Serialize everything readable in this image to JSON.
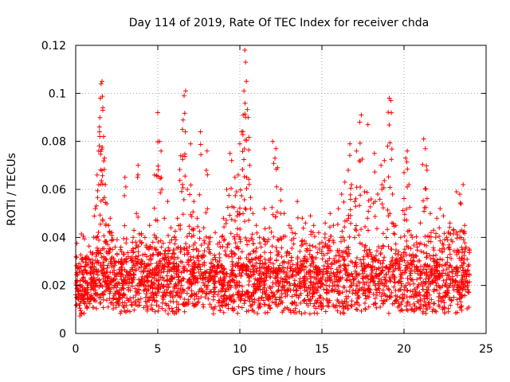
{
  "chart_data": {
    "type": "scatter",
    "title": "Day 114 of 2019, Rate Of TEC Index for receiver chda",
    "xlabel": "GPS time / hours",
    "ylabel": "ROTI / TECUs",
    "xlim": [
      0,
      25
    ],
    "ylim": [
      0,
      0.12
    ],
    "x_ticks": [
      "0",
      "5",
      "10",
      "15",
      "20",
      "25"
    ],
    "y_ticks": [
      "0",
      "0.02",
      "0.04",
      "0.06",
      "0.08",
      "0.1",
      "0.12"
    ],
    "x_tick_values": [
      0,
      5,
      10,
      15,
      20,
      25
    ],
    "y_tick_values": [
      0,
      0.02,
      0.04,
      0.06,
      0.08,
      0.1,
      0.12
    ],
    "grid": true,
    "marker": "+",
    "color": "#ff0000",
    "series": [
      {
        "name": "ROTI",
        "points": [
          [
            0.1,
            0.022
          ],
          [
            0.2,
            0.029
          ],
          [
            0.3,
            0.016
          ],
          [
            0.5,
            0.018
          ],
          [
            0.7,
            0.021
          ],
          [
            0.9,
            0.025
          ],
          [
            1.0,
            0.033
          ],
          [
            1.1,
            0.04
          ],
          [
            1.2,
            0.052
          ],
          [
            1.3,
            0.066
          ],
          [
            1.4,
            0.076
          ],
          [
            1.45,
            0.084
          ],
          [
            1.5,
            0.098
          ],
          [
            1.55,
            0.104
          ],
          [
            1.6,
            0.105
          ],
          [
            1.65,
            0.094
          ],
          [
            1.7,
            0.082
          ],
          [
            1.75,
            0.073
          ],
          [
            1.8,
            0.062
          ],
          [
            1.9,
            0.054
          ],
          [
            2.0,
            0.045
          ],
          [
            2.1,
            0.048
          ],
          [
            2.2,
            0.042
          ],
          [
            2.4,
            0.036
          ],
          [
            2.6,
            0.03
          ],
          [
            2.8,
            0.034
          ],
          [
            3.0,
            0.065
          ],
          [
            3.2,
            0.032
          ],
          [
            3.5,
            0.04
          ],
          [
            3.7,
            0.05
          ],
          [
            3.8,
            0.07
          ],
          [
            4.0,
            0.041
          ],
          [
            4.3,
            0.036
          ],
          [
            4.5,
            0.045
          ],
          [
            4.7,
            0.038
          ],
          [
            4.8,
            0.066
          ],
          [
            5.0,
            0.092
          ],
          [
            5.1,
            0.08
          ],
          [
            5.2,
            0.076
          ],
          [
            5.4,
            0.048
          ],
          [
            5.6,
            0.055
          ],
          [
            5.8,
            0.044
          ],
          [
            6.0,
            0.04
          ],
          [
            6.2,
            0.048
          ],
          [
            6.4,
            0.074
          ],
          [
            6.5,
            0.085
          ],
          [
            6.6,
            0.099
          ],
          [
            6.7,
            0.101
          ],
          [
            6.8,
            0.06
          ],
          [
            7.0,
            0.079
          ],
          [
            7.2,
            0.055
          ],
          [
            7.4,
            0.048
          ],
          [
            7.6,
            0.084
          ],
          [
            7.8,
            0.044
          ],
          [
            8.0,
            0.076
          ],
          [
            8.2,
            0.04
          ],
          [
            8.5,
            0.042
          ],
          [
            8.8,
            0.036
          ],
          [
            9.0,
            0.048
          ],
          [
            9.2,
            0.06
          ],
          [
            9.4,
            0.075
          ],
          [
            9.5,
            0.072
          ],
          [
            9.7,
            0.065
          ],
          [
            9.8,
            0.059
          ],
          [
            9.9,
            0.066
          ],
          [
            10.0,
            0.079
          ],
          [
            10.1,
            0.084
          ],
          [
            10.2,
            0.091
          ],
          [
            10.25,
            0.101
          ],
          [
            10.3,
            0.118
          ],
          [
            10.35,
            0.113
          ],
          [
            10.4,
            0.105
          ],
          [
            10.5,
            0.09
          ],
          [
            10.6,
            0.07
          ],
          [
            10.8,
            0.05
          ],
          [
            11.0,
            0.045
          ],
          [
            11.2,
            0.04
          ],
          [
            11.5,
            0.052
          ],
          [
            11.8,
            0.044
          ],
          [
            12.0,
            0.08
          ],
          [
            12.2,
            0.077
          ],
          [
            12.3,
            0.069
          ],
          [
            12.5,
            0.06
          ],
          [
            12.7,
            0.05
          ],
          [
            13.0,
            0.045
          ],
          [
            13.2,
            0.042
          ],
          [
            13.5,
            0.055
          ],
          [
            13.8,
            0.048
          ],
          [
            14.0,
            0.046
          ],
          [
            14.3,
            0.049
          ],
          [
            14.5,
            0.045
          ],
          [
            14.8,
            0.042
          ],
          [
            15.0,
            0.038
          ],
          [
            15.2,
            0.046
          ],
          [
            15.5,
            0.05
          ],
          [
            15.7,
            0.045
          ],
          [
            16.0,
            0.052
          ],
          [
            16.2,
            0.058
          ],
          [
            16.4,
            0.063
          ],
          [
            16.6,
            0.068
          ],
          [
            16.7,
            0.079
          ],
          [
            16.8,
            0.062
          ],
          [
            17.0,
            0.055
          ],
          [
            17.1,
            0.076
          ],
          [
            17.3,
            0.088
          ],
          [
            17.4,
            0.091
          ],
          [
            17.6,
            0.059
          ],
          [
            17.8,
            0.087
          ],
          [
            18.0,
            0.056
          ],
          [
            18.2,
            0.075
          ],
          [
            18.4,
            0.058
          ],
          [
            18.6,
            0.07
          ],
          [
            18.8,
            0.072
          ],
          [
            19.0,
            0.078
          ],
          [
            19.1,
            0.098
          ],
          [
            19.2,
            0.097
          ],
          [
            19.3,
            0.058
          ],
          [
            19.5,
            0.045
          ],
          [
            19.8,
            0.04
          ],
          [
            20.0,
            0.067
          ],
          [
            20.1,
            0.073
          ],
          [
            20.2,
            0.076
          ],
          [
            20.3,
            0.062
          ],
          [
            20.5,
            0.04
          ],
          [
            20.8,
            0.036
          ],
          [
            21.0,
            0.046
          ],
          [
            21.2,
            0.081
          ],
          [
            21.3,
            0.077
          ],
          [
            21.4,
            0.068
          ],
          [
            21.6,
            0.05
          ],
          [
            21.8,
            0.043
          ],
          [
            22.0,
            0.048
          ],
          [
            22.2,
            0.052
          ],
          [
            22.4,
            0.049
          ],
          [
            22.6,
            0.04
          ],
          [
            22.8,
            0.046
          ],
          [
            23.0,
            0.043
          ],
          [
            23.2,
            0.059
          ],
          [
            23.4,
            0.058
          ],
          [
            23.6,
            0.062
          ],
          [
            23.7,
            0.045
          ],
          [
            23.9,
            0.028
          ]
        ]
      }
    ]
  }
}
